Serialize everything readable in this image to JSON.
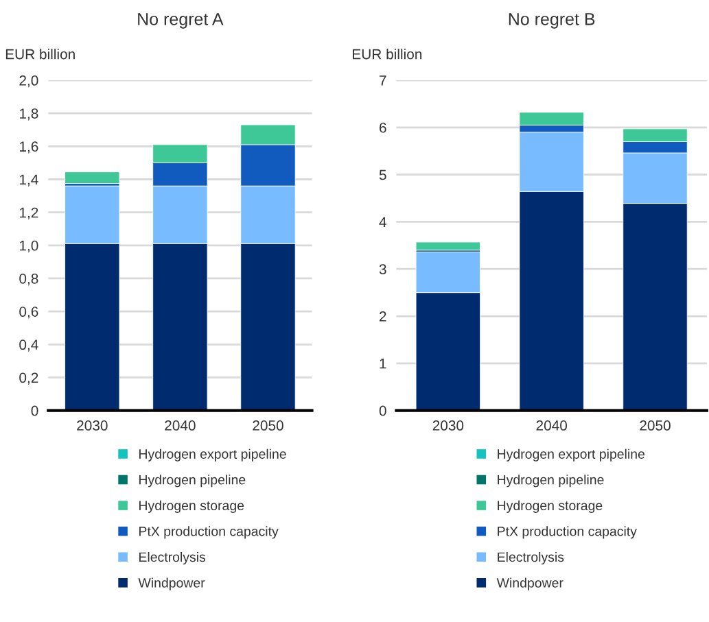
{
  "chart_data": [
    {
      "type": "bar",
      "title": "No regret A",
      "ylabel": "EUR billion",
      "stacked": true,
      "categories": [
        "2030",
        "2040",
        "2050"
      ],
      "series": [
        {
          "name": "Windpower",
          "color": "#002b6e",
          "values": [
            1.01,
            1.01,
            1.01
          ]
        },
        {
          "name": "Electrolysis",
          "color": "#78bcff",
          "values": [
            0.35,
            0.35,
            0.35
          ]
        },
        {
          "name": "PtX production capacity",
          "color": "#115bbf",
          "values": [
            0.015,
            0.14,
            0.25
          ]
        },
        {
          "name": "Hydrogen storage",
          "color": "#3ec897",
          "values": [
            0.07,
            0.11,
            0.12
          ]
        },
        {
          "name": "Hydrogen pipeline",
          "color": "#00756a",
          "values": [
            null,
            null,
            null
          ]
        },
        {
          "name": "Hydrogen export pipeline",
          "color": "#14c3bd",
          "values": [
            null,
            null,
            null
          ]
        }
      ],
      "ylim": [
        0,
        2.0
      ],
      "yticks": [
        {
          "value": 0,
          "label": "0"
        },
        {
          "value": 0.2,
          "label": "0,2"
        },
        {
          "value": 0.4,
          "label": "0,4"
        },
        {
          "value": 0.6,
          "label": "0,6"
        },
        {
          "value": 0.8,
          "label": "0,8"
        },
        {
          "value": 1.0,
          "label": "1,0"
        },
        {
          "value": 1.2,
          "label": "1,2"
        },
        {
          "value": 1.4,
          "label": "1,4"
        },
        {
          "value": 1.6,
          "label": "1,6"
        },
        {
          "value": 1.8,
          "label": "1,8"
        },
        {
          "value": 2.0,
          "label": "2,0"
        }
      ],
      "grid": "y",
      "legend": "bottom"
    },
    {
      "type": "bar",
      "title": "No regret B",
      "ylabel": "EUR billion",
      "stacked": true,
      "categories": [
        "2030",
        "2040",
        "2050"
      ],
      "series": [
        {
          "name": "Windpower",
          "color": "#002b6e",
          "values": [
            2.5,
            4.64,
            4.39
          ]
        },
        {
          "name": "Electrolysis",
          "color": "#78bcff",
          "values": [
            0.86,
            1.26,
            1.07
          ]
        },
        {
          "name": "PtX production capacity",
          "color": "#115bbf",
          "values": [
            0.04,
            0.15,
            0.24
          ]
        },
        {
          "name": "Hydrogen storage",
          "color": "#3ec897",
          "values": [
            0.17,
            0.27,
            0.27
          ]
        },
        {
          "name": "Hydrogen pipeline",
          "color": "#00756a",
          "values": [
            null,
            null,
            null
          ]
        },
        {
          "name": "Hydrogen export pipeline",
          "color": "#14c3bd",
          "values": [
            null,
            null,
            null
          ]
        }
      ],
      "ylim": [
        0,
        7
      ],
      "yticks": [
        0,
        1,
        2,
        3,
        4,
        5,
        6,
        7
      ],
      "grid": "y",
      "legend": "bottom"
    }
  ]
}
